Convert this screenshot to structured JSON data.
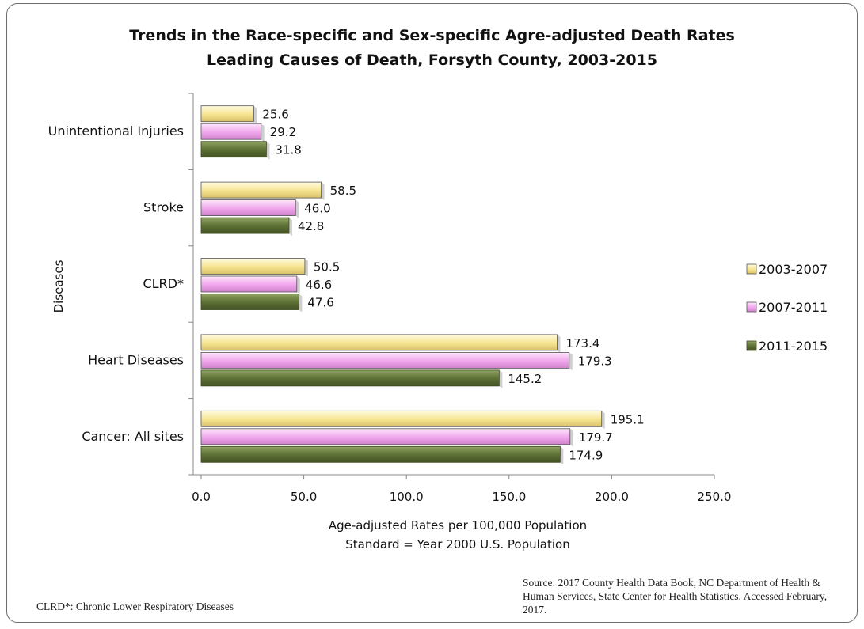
{
  "chart_data": {
    "type": "bar",
    "orientation": "horizontal",
    "title": "Trends in the Race-specific and Sex-specific Agre-adjusted Death Rates",
    "subtitle": "Leading Causes of Death, Forsyth County, 2003-2015",
    "categories": [
      "Unintentional Injuries",
      "Stroke",
      "CLRD*",
      "Heart Diseases",
      "Cancer: All sites"
    ],
    "series": [
      {
        "name": "2003-2007",
        "color": "#f6e48f",
        "values": [
          25.6,
          58.5,
          50.5,
          173.4,
          195.1
        ]
      },
      {
        "name": "2007-2011",
        "color": "#f0a6ec",
        "values": [
          29.2,
          46.0,
          46.6,
          179.3,
          179.7
        ]
      },
      {
        "name": "2011-2015",
        "color": "#6d7f3f",
        "values": [
          31.8,
          42.8,
          47.6,
          145.2,
          174.9
        ]
      }
    ],
    "xlabel": "Age-adjusted Rates per 100,000 Population",
    "xlabel2": "Standard = Year 2000 U.S. Population",
    "ylabel": "Diseases",
    "xlim": [
      0,
      250
    ],
    "xticks": [
      "0.0",
      "50.0",
      "100.0",
      "150.0",
      "200.0",
      "250.0"
    ],
    "grid": false,
    "legend_position": "right"
  },
  "notes": {
    "footnote": "CLRD*: Chronic Lower Respiratory Diseases",
    "source": "Source: 2017 County Health Data Book, NC Department of Health & Human Services, State Center for Health Statistics. Accessed February, 2017."
  }
}
